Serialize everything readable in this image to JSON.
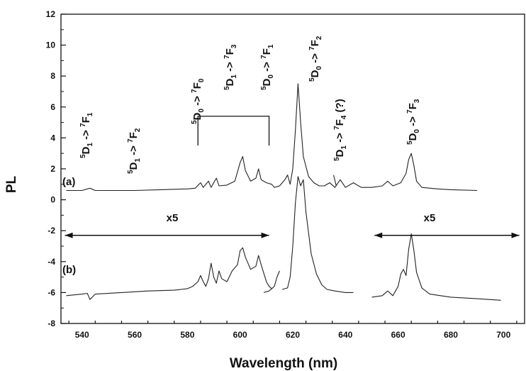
{
  "chart_data": {
    "type": "line",
    "xlabel": "Wavelength (nm)",
    "ylabel": "PL",
    "xlim": [
      532,
      708
    ],
    "ylim": [
      -8,
      12
    ],
    "x_ticks": [
      "540",
      "560",
      "580",
      "600",
      "620",
      "640",
      "660",
      "680",
      "700"
    ],
    "y_ticks": [
      "-8",
      "-6",
      "-4",
      "-2",
      "0",
      "2",
      "4",
      "6",
      "8",
      "10",
      "12"
    ],
    "grid": false,
    "legend": "none",
    "series": [
      {
        "name": "(a)",
        "segments": [
          [
            [
              534,
              0.6
            ],
            [
              540,
              0.6
            ],
            [
              543,
              0.75
            ],
            [
              545,
              0.6
            ],
            [
              560,
              0.6
            ],
            [
              570,
              0.65
            ],
            [
              580,
              0.7
            ],
            [
              583,
              0.75
            ],
            [
              585,
              1.1
            ],
            [
              586,
              0.8
            ],
            [
              588,
              1.2
            ],
            [
              589,
              0.8
            ],
            [
              591,
              1.4
            ],
            [
              592,
              0.9
            ],
            [
              595,
              0.95
            ],
            [
              598,
              1.2
            ],
            [
              600,
              2.4
            ],
            [
              601,
              2.8
            ],
            [
              602,
              1.9
            ],
            [
              604,
              1.2
            ],
            [
              606,
              1.4
            ],
            [
              607,
              2.0
            ],
            [
              608,
              1.3
            ],
            [
              610,
              1.1
            ],
            [
              612,
              1.0
            ],
            [
              613,
              0.8
            ],
            [
              615,
              0.9
            ],
            [
              617,
              1.3
            ],
            [
              618,
              1.6
            ],
            [
              619,
              1.0
            ],
            [
              620,
              2.0
            ],
            [
              621,
              4.5
            ],
            [
              622,
              7.5
            ],
            [
              623,
              5.0
            ],
            [
              624,
              2.8
            ],
            [
              626,
              1.5
            ],
            [
              628,
              1.1
            ],
            [
              630,
              0.9
            ],
            [
              632,
              0.9
            ],
            [
              634,
              1.1
            ],
            [
              636,
              0.8
            ],
            [
              638,
              1.3
            ],
            [
              640,
              0.8
            ],
            [
              643,
              1.1
            ],
            [
              646,
              0.8
            ],
            [
              650,
              0.8
            ],
            [
              654,
              0.9
            ],
            [
              656,
              1.2
            ],
            [
              658,
              0.9
            ],
            [
              661,
              1.1
            ],
            [
              663,
              1.7
            ],
            [
              664,
              2.6
            ],
            [
              665,
              3.0
            ],
            [
              666,
              2.2
            ],
            [
              667,
              1.2
            ],
            [
              669,
              0.8
            ],
            [
              675,
              0.7
            ],
            [
              680,
              0.65
            ],
            [
              690,
              0.6
            ]
          ],
          [
            [
              635.5,
              1.6
            ],
            [
              636.5,
              0.9
            ]
          ]
        ]
      },
      {
        "name": "(b)",
        "segments": [
          [
            [
              534,
              -6.2
            ],
            [
              540,
              -6.1
            ],
            [
              542,
              -6.05
            ],
            [
              543,
              -6.45
            ],
            [
              545,
              -6.1
            ],
            [
              555,
              -6.0
            ],
            [
              565,
              -5.9
            ],
            [
              575,
              -5.85
            ],
            [
              580,
              -5.75
            ],
            [
              582,
              -5.6
            ],
            [
              584,
              -5.3
            ],
            [
              585,
              -4.9
            ],
            [
              586,
              -5.3
            ],
            [
              587,
              -5.6
            ],
            [
              588,
              -5.1
            ],
            [
              589,
              -4.1
            ],
            [
              590,
              -5.0
            ],
            [
              591,
              -5.4
            ],
            [
              592,
              -4.6
            ],
            [
              593,
              -5.1
            ],
            [
              595,
              -5.3
            ],
            [
              597,
              -4.6
            ],
            [
              599,
              -4.2
            ],
            [
              600,
              -3.3
            ],
            [
              601,
              -3.1
            ],
            [
              602,
              -3.7
            ],
            [
              604,
              -4.5
            ],
            [
              606,
              -4.3
            ],
            [
              607,
              -3.6
            ],
            [
              608,
              -4.2
            ],
            [
              610,
              -5.3
            ],
            [
              611,
              -5.6
            ],
            [
              612,
              -5.75
            ]
          ],
          [
            [
              609,
              -6.0
            ],
            [
              611,
              -5.9
            ],
            [
              613,
              -5.6
            ],
            [
              614,
              -5.0
            ],
            [
              615,
              -4.6
            ]
          ],
          [
            [
              616,
              -5.8
            ],
            [
              618,
              -5.7
            ],
            [
              619,
              -5.0
            ],
            [
              620,
              -3.0
            ],
            [
              621,
              -0.2
            ],
            [
              622,
              1.5
            ],
            [
              623,
              0.9
            ],
            [
              624,
              1.3
            ],
            [
              625,
              -0.8
            ],
            [
              627,
              -3.5
            ],
            [
              629,
              -4.8
            ],
            [
              631,
              -5.5
            ],
            [
              633,
              -5.8
            ],
            [
              636,
              -5.9
            ],
            [
              640,
              -6.0
            ],
            [
              643,
              -6.0
            ]
          ],
          [
            [
              650,
              -6.3
            ],
            [
              654,
              -6.2
            ],
            [
              656,
              -5.9
            ],
            [
              658,
              -6.2
            ],
            [
              660,
              -5.6
            ],
            [
              661,
              -4.8
            ],
            [
              662,
              -4.5
            ],
            [
              663,
              -4.9
            ],
            [
              664,
              -3.2
            ],
            [
              665,
              -2.2
            ],
            [
              666,
              -3.3
            ],
            [
              667,
              -4.7
            ],
            [
              669,
              -5.7
            ],
            [
              672,
              -6.1
            ],
            [
              680,
              -6.3
            ],
            [
              690,
              -6.4
            ],
            [
              699,
              -6.5
            ]
          ]
        ]
      }
    ],
    "annotations": [
      {
        "pre": "5",
        "base1": "D",
        "sub1": "1",
        "arrow": "->",
        "sup2": "7",
        "base2": "F",
        "sub2": "1"
      },
      {
        "pre": "5",
        "base1": "D",
        "sub1": "1",
        "arrow": "->",
        "sup2": "7",
        "base2": "F",
        "sub2": "2"
      },
      {
        "pre": "5",
        "base1": "D",
        "sub1": "0",
        "arrow": "->",
        "sup2": "7",
        "base2": "F",
        "sub2": "0"
      },
      {
        "pre": "5",
        "base1": "D",
        "sub1": "1",
        "arrow": "->",
        "sup2": "7",
        "base2": "F",
        "sub2": "3"
      },
      {
        "pre": "5",
        "base1": "D",
        "sub1": "0",
        "arrow": "->",
        "sup2": "7",
        "base2": "F",
        "sub2": "1"
      },
      {
        "pre": "5",
        "base1": "D",
        "sub1": "0",
        "arrow": "->",
        "sup2": "7",
        "base2": "F",
        "sub2": "2"
      },
      {
        "pre": "5",
        "base1": "D",
        "sub1": "1",
        "arrow": "->",
        "sup2": "7",
        "base2": "F",
        "sub2": "4",
        "post": " (?)"
      },
      {
        "pre": "5",
        "base1": "D",
        "sub1": "0",
        "arrow": "->",
        "sup2": "7",
        "base2": "F",
        "sub2": "3"
      }
    ],
    "series_labels": [
      "(a)",
      "(b)"
    ],
    "scale_labels": [
      "x5",
      "x5"
    ]
  }
}
